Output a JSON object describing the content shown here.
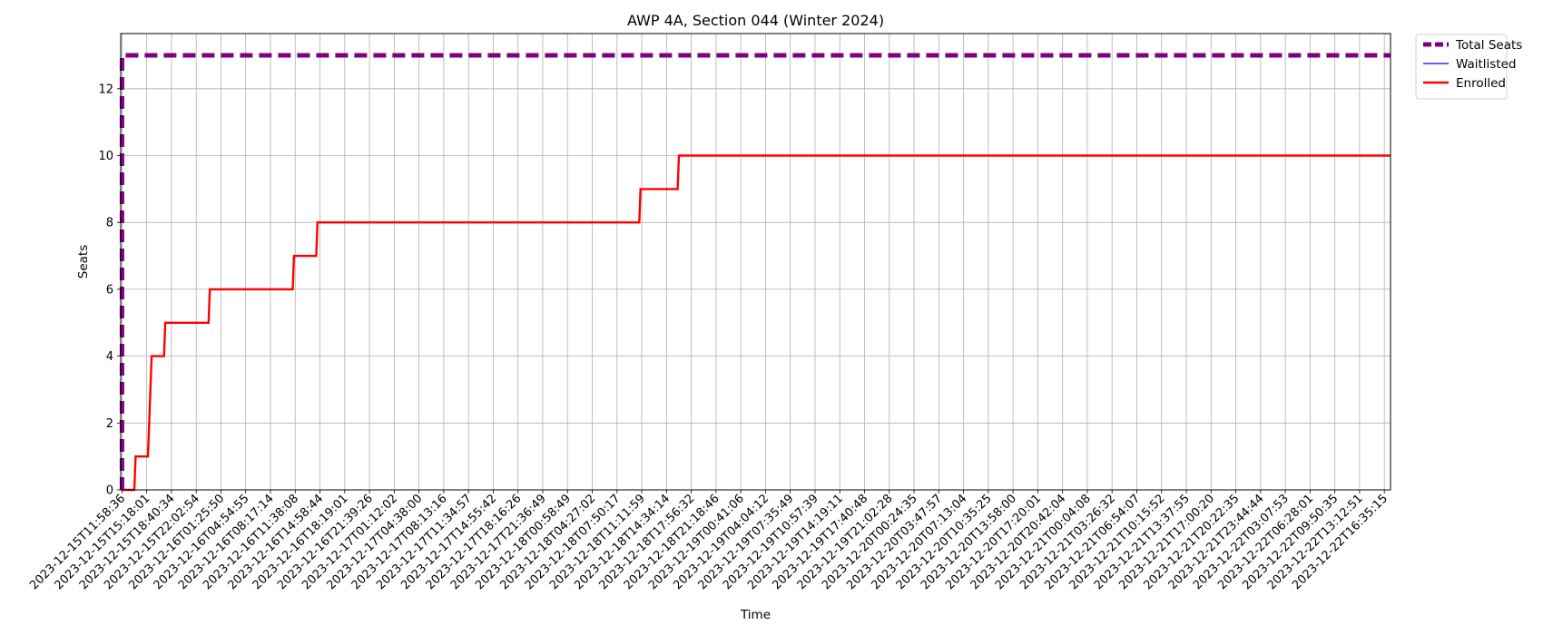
{
  "chart_data": {
    "type": "line",
    "title": "AWP 4A, Section 044 (Winter 2024)",
    "xlabel": "Time",
    "ylabel": "Seats",
    "ylim": [
      0,
      13.65
    ],
    "yticks": [
      0,
      2,
      4,
      6,
      8,
      10,
      12
    ],
    "grid": true,
    "legend_position": "outside-top-right",
    "x_ticks": [
      "2023-12-15T11:58:36",
      "2023-12-15T15:18:01",
      "2023-12-15T18:40:34",
      "2023-12-15T22:02:54",
      "2023-12-16T01:25:50",
      "2023-12-16T04:54:55",
      "2023-12-16T08:17:14",
      "2023-12-16T11:38:08",
      "2023-12-16T14:58:44",
      "2023-12-16T18:19:01",
      "2023-12-16T21:39:26",
      "2023-12-17T01:12:02",
      "2023-12-17T04:38:00",
      "2023-12-17T08:13:16",
      "2023-12-17T11:34:57",
      "2023-12-17T14:55:42",
      "2023-12-17T18:16:26",
      "2023-12-17T21:36:49",
      "2023-12-18T00:58:49",
      "2023-12-18T04:27:02",
      "2023-12-18T07:50:17",
      "2023-12-18T11:11:59",
      "2023-12-18T14:34:14",
      "2023-12-18T17:56:32",
      "2023-12-18T21:18:46",
      "2023-12-19T00:41:06",
      "2023-12-19T04:04:12",
      "2023-12-19T07:35:49",
      "2023-12-19T10:57:39",
      "2023-12-19T14:19:11",
      "2023-12-19T17:40:48",
      "2023-12-19T21:02:28",
      "2023-12-20T00:24:35",
      "2023-12-20T03:47:57",
      "2023-12-20T07:13:04",
      "2023-12-20T10:35:25",
      "2023-12-20T13:58:00",
      "2023-12-20T17:20:01",
      "2023-12-20T20:42:04",
      "2023-12-21T00:04:08",
      "2023-12-21T03:26:32",
      "2023-12-21T06:54:07",
      "2023-12-21T10:15:52",
      "2023-12-21T13:37:55",
      "2023-12-21T17:00:20",
      "2023-12-21T20:22:35",
      "2023-12-21T23:44:44",
      "2023-12-22T03:07:53",
      "2023-12-22T06:28:01",
      "2023-12-22T09:50:35",
      "2023-12-22T13:12:51",
      "2023-12-22T16:35:15"
    ],
    "x_range": [
      -0.05,
      51.25
    ],
    "series": [
      {
        "name": "Total Seats",
        "color": "#800080",
        "style": "dashed",
        "points": [
          [
            0,
            0
          ],
          [
            0,
            13
          ],
          [
            51.25,
            13
          ]
        ]
      },
      {
        "name": "Waitlisted",
        "color": "#0000ff",
        "style": "solid",
        "points": []
      },
      {
        "name": "Enrolled",
        "color": "#ff0000",
        "style": "solid",
        "points": [
          [
            0,
            0
          ],
          [
            0.5,
            0
          ],
          [
            0.55,
            1
          ],
          [
            1.05,
            1
          ],
          [
            1.15,
            3
          ],
          [
            1.2,
            4
          ],
          [
            1.7,
            4
          ],
          [
            1.75,
            5
          ],
          [
            3.5,
            5
          ],
          [
            3.55,
            6
          ],
          [
            6.9,
            6
          ],
          [
            6.95,
            7
          ],
          [
            7.85,
            7
          ],
          [
            7.9,
            8
          ],
          [
            20.9,
            8
          ],
          [
            20.95,
            9
          ],
          [
            22.45,
            9
          ],
          [
            22.5,
            10
          ],
          [
            51.25,
            10
          ]
        ]
      }
    ]
  }
}
